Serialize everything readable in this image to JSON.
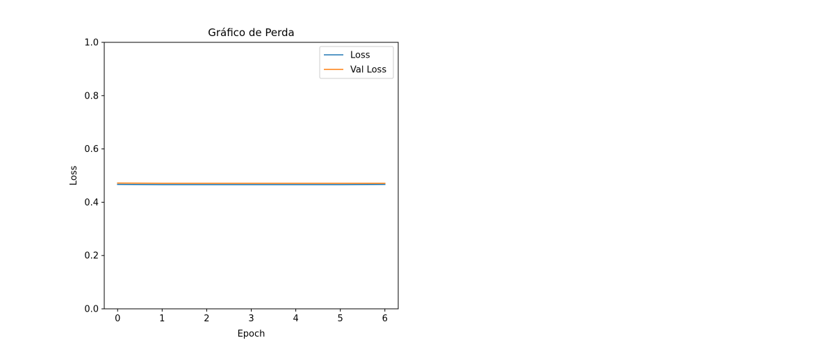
{
  "chart_data": {
    "type": "line",
    "title": "Gráfico de Perda",
    "xlabel": "Epoch",
    "ylabel": "Loss",
    "x": [
      0,
      1,
      2,
      3,
      4,
      5,
      6
    ],
    "xlim": [
      -0.3,
      6.3
    ],
    "ylim": [
      0.0,
      1.0
    ],
    "xticks": [
      0,
      1,
      2,
      3,
      4,
      5,
      6
    ],
    "yticks": [
      0.0,
      0.2,
      0.4,
      0.6,
      0.8,
      1.0
    ],
    "xtick_labels": [
      "0",
      "1",
      "2",
      "3",
      "4",
      "5",
      "6"
    ],
    "ytick_labels": [
      "0.0",
      "0.2",
      "0.4",
      "0.6",
      "0.8",
      "1.0"
    ],
    "grid": false,
    "legend_position": "top-right",
    "series": [
      {
        "name": "Loss",
        "color": "#1f77b4",
        "values": [
          0.467,
          0.466,
          0.466,
          0.466,
          0.466,
          0.466,
          0.467
        ]
      },
      {
        "name": "Val Loss",
        "color": "#ff7f0e",
        "values": [
          0.472,
          0.471,
          0.471,
          0.471,
          0.471,
          0.471,
          0.471
        ]
      }
    ]
  }
}
